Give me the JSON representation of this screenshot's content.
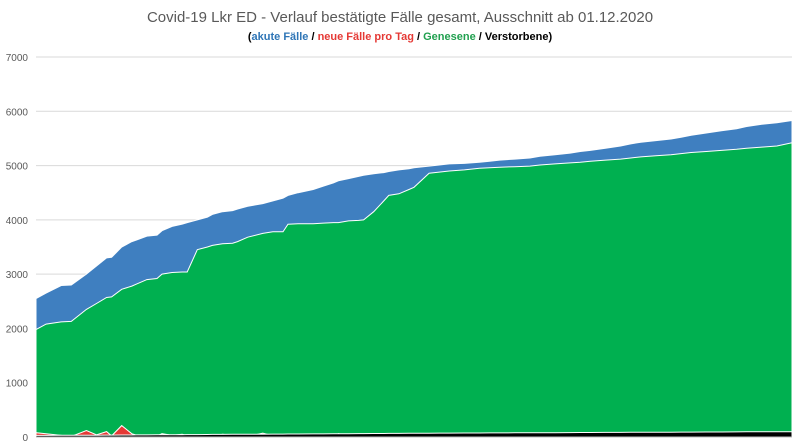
{
  "chart_data": {
    "type": "area",
    "title": "Covid-19 Lkr ED - Verlauf bestätigte Fälle gesamt, Ausschnitt ab 01.12.2020",
    "subtitle_parts": [
      {
        "text": "(",
        "color": "#000000"
      },
      {
        "text": "akute Fälle",
        "color": "#2e75b6"
      },
      {
        "text": " / ",
        "color": "#000000"
      },
      {
        "text": "neue Fälle pro Tag",
        "color": "#e53935"
      },
      {
        "text": " / ",
        "color": "#000000"
      },
      {
        "text": "Genesene",
        "color": "#21a04f"
      },
      {
        "text": " / ",
        "color": "#000000"
      },
      {
        "text": "Verstorbene",
        "color": "#000000"
      },
      {
        "text": ")",
        "color": "#000000"
      }
    ],
    "ylim": [
      0,
      7000
    ],
    "yticks": [
      "0",
      "1000",
      "2000",
      "3000",
      "4000",
      "5000",
      "6000",
      "7000"
    ],
    "grid": true,
    "x": [
      0,
      2,
      5,
      7,
      10,
      12,
      14,
      15,
      17,
      19,
      20,
      22,
      24,
      25,
      27,
      29,
      30,
      32,
      34,
      35,
      37,
      39,
      40,
      42,
      45,
      47,
      49,
      50,
      52,
      55,
      57,
      59,
      60,
      62,
      64,
      65,
      67,
      69,
      70,
      72,
      74,
      75,
      78,
      80,
      82,
      85,
      88,
      90,
      92,
      95,
      98,
      100,
      103,
      106,
      108,
      110,
      113,
      116,
      118,
      120,
      123,
      126,
      128,
      130,
      133,
      136,
      139,
      141,
      144,
      147,
      150
    ],
    "series": [
      {
        "name": "akute Fälle",
        "color": "#3f7fc0",
        "values": [
          2550,
          2650,
          2790,
          2800,
          3000,
          3150,
          3300,
          3310,
          3500,
          3600,
          3630,
          3700,
          3720,
          3800,
          3880,
          3920,
          3950,
          4000,
          4050,
          4100,
          4150,
          4170,
          4200,
          4250,
          4300,
          4350,
          4400,
          4450,
          4500,
          4560,
          4620,
          4680,
          4720,
          4760,
          4800,
          4820,
          4850,
          4870,
          4890,
          4920,
          4940,
          4960,
          4990,
          5010,
          5030,
          5040,
          5060,
          5080,
          5100,
          5120,
          5140,
          5170,
          5200,
          5230,
          5260,
          5280,
          5320,
          5360,
          5400,
          5430,
          5460,
          5490,
          5520,
          5560,
          5600,
          5640,
          5680,
          5720,
          5760,
          5790,
          5830
        ]
      },
      {
        "name": "Genesene",
        "color": "#00b050",
        "values": [
          1980,
          2080,
          2120,
          2130,
          2350,
          2460,
          2570,
          2580,
          2720,
          2780,
          2820,
          2900,
          2920,
          3000,
          3030,
          3040,
          3040,
          3450,
          3500,
          3530,
          3560,
          3570,
          3600,
          3680,
          3750,
          3780,
          3780,
          3920,
          3930,
          3930,
          3940,
          3950,
          3950,
          3980,
          3990,
          4000,
          4150,
          4350,
          4450,
          4480,
          4560,
          4600,
          4860,
          4880,
          4900,
          4920,
          4950,
          4960,
          4970,
          4980,
          4990,
          5010,
          5030,
          5050,
          5060,
          5080,
          5100,
          5120,
          5140,
          5160,
          5180,
          5200,
          5220,
          5240,
          5260,
          5280,
          5300,
          5320,
          5340,
          5360,
          5420
        ]
      },
      {
        "name": "neue Fälle pro Tag",
        "color": "#e53935",
        "values": [
          80,
          60,
          30,
          10,
          120,
          40,
          100,
          20,
          210,
          60,
          30,
          10,
          20,
          60,
          30,
          50,
          20,
          30,
          40,
          10,
          50,
          30,
          20,
          10,
          70,
          20,
          10,
          20,
          40,
          10,
          30,
          20,
          60,
          20,
          10,
          30,
          40,
          20,
          50,
          30,
          20,
          40,
          20,
          10,
          30,
          20,
          50,
          20,
          30,
          10,
          40,
          20,
          30,
          20,
          10,
          40,
          20,
          30,
          20,
          50,
          30,
          20,
          10,
          40,
          30,
          20,
          50,
          30,
          20,
          40,
          30
        ]
      },
      {
        "name": "Verstorbene",
        "color": "#000000",
        "values": [
          30,
          30,
          31,
          32,
          33,
          34,
          35,
          35,
          36,
          37,
          38,
          39,
          40,
          41,
          42,
          43,
          44,
          45,
          46,
          47,
          48,
          49,
          50,
          51,
          52,
          53,
          54,
          55,
          56,
          57,
          58,
          59,
          60,
          61,
          62,
          63,
          64,
          65,
          66,
          67,
          68,
          69,
          70,
          71,
          72,
          73,
          74,
          75,
          76,
          77,
          78,
          79,
          80,
          81,
          82,
          83,
          84,
          85,
          86,
          87,
          88,
          89,
          90,
          91,
          92,
          93,
          94,
          95,
          96,
          97,
          98
        ]
      }
    ]
  }
}
